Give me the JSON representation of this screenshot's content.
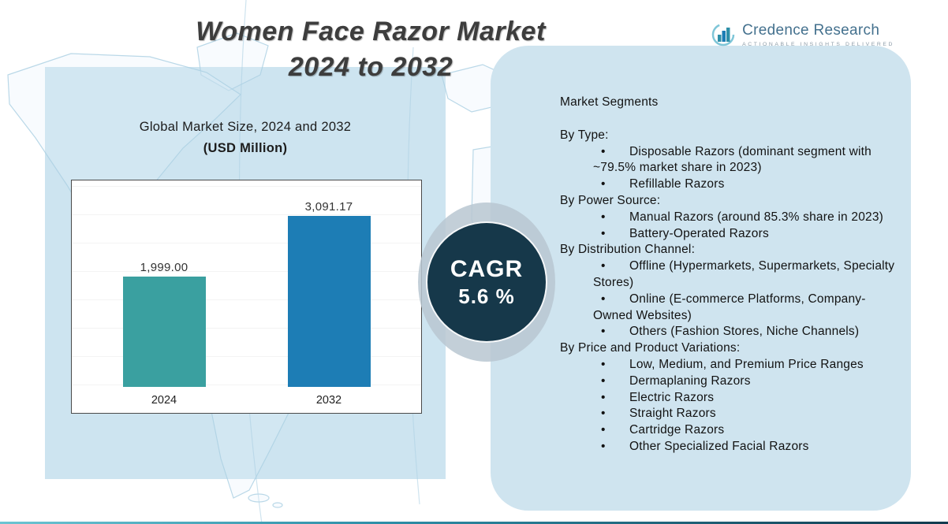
{
  "header": {
    "title_line1": "Women Face Razor Market",
    "title_line2": "2024 to 2032"
  },
  "logo": {
    "name": "Credence Research",
    "tagline": "Actionable Insights Delivered"
  },
  "chart_panel": {
    "subtitle": "Global Market Size, 2024 and 2032",
    "unit": "(USD Million)"
  },
  "chart_data": {
    "type": "bar",
    "title": "Global Market Size, 2024 and 2032 (USD Million)",
    "categories": [
      "2024",
      "2032"
    ],
    "values": [
      1999.0,
      3091.17
    ],
    "value_labels": [
      "1,999.00",
      "3,091.17"
    ],
    "bar_colors": [
      "#3aa0a0",
      "#1d7db5"
    ],
    "xlabel": "",
    "ylabel": "USD Million",
    "ylim": [
      0,
      3600
    ],
    "grid": true,
    "legend": "none"
  },
  "cagr": {
    "label": "CAGR",
    "value": "5.6 %"
  },
  "segments": {
    "title": "Market Segments",
    "groups": [
      {
        "heading": "By Type:",
        "items": [
          "Disposable Razors (dominant segment with ~79.5% market share in 2023)",
          "Refillable Razors"
        ]
      },
      {
        "heading": "By Power Source:",
        "items": [
          "Manual Razors (around 85.3% share in 2023)",
          "Battery-Operated Razors"
        ]
      },
      {
        "heading": "By Distribution Channel:",
        "items": [
          "Offline (Hypermarkets, Supermarkets, Specialty Stores)",
          "Online (E-commerce Platforms, Company-Owned Websites)",
          "Others (Fashion Stores, Niche Channels)"
        ]
      },
      {
        "heading": "By Price and Product Variations:",
        "items": [
          "Low, Medium, and Premium Price Ranges",
          "Dermaplaning Razors",
          "Electric Razors",
          "Straight Razors",
          "Cartridge Razors",
          "Other Specialized Facial Razors"
        ]
      }
    ]
  },
  "colors": {
    "panel_background": "#cfe4ef",
    "cagr_circle": "#16384a",
    "bar_2024": "#3aa0a0",
    "bar_2032": "#1d7db5",
    "accent_teal": "#2e8fa8"
  }
}
